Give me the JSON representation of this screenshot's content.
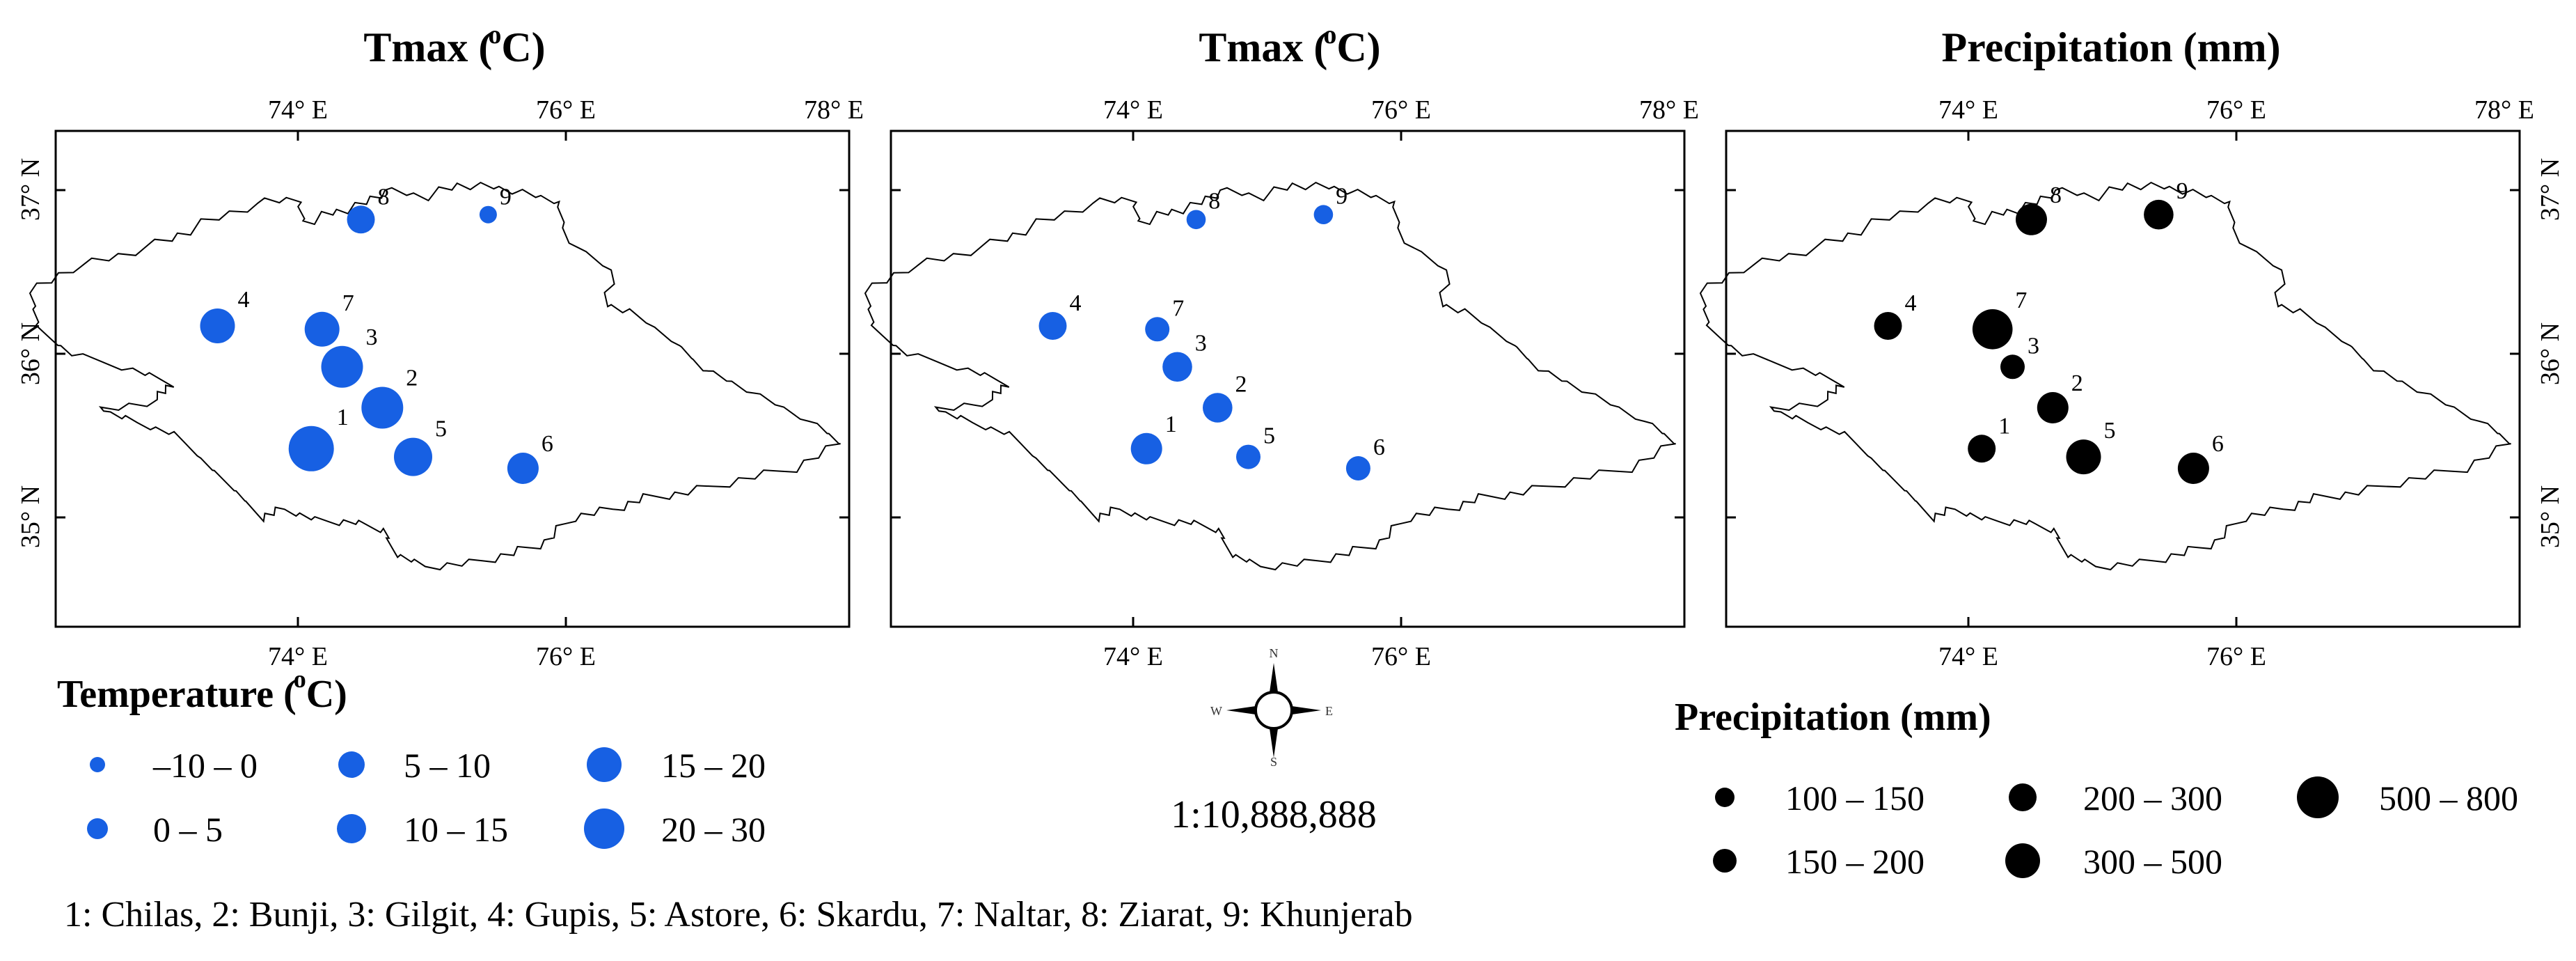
{
  "panels": [
    {
      "id": "tmax-1",
      "title_main": "Tmax (",
      "title_sup": "o",
      "title_end": "C)",
      "title_sup_dx": -6,
      "fill": "#1760e3",
      "sizes": [
        13,
        12,
        12,
        10,
        11,
        9,
        10,
        8,
        5
      ]
    },
    {
      "id": "tmax-2",
      "title_main": "Tmax (",
      "title_sup": "o",
      "title_end": "C)",
      "title_sup_dx": -6,
      "fill": "#1760e3",
      "sizes": [
        9,
        8.5,
        8.5,
        8,
        7,
        7,
        7,
        5.5,
        5.5
      ]
    },
    {
      "id": "precip",
      "title_main": "Precipitation (mm)",
      "title_sup": "",
      "title_end": "",
      "title_sup_dx": 0,
      "fill": "#000000",
      "sizes": [
        8,
        9,
        7,
        8,
        10,
        9,
        11.5,
        9,
        8.5
      ]
    }
  ],
  "axes": {
    "lon_top": [
      "74° E",
      "76° E",
      "78° E"
    ],
    "lon_bottom": [
      "74° E",
      "76° E"
    ],
    "lat_right": [
      "37° N",
      "36° N",
      "35° N"
    ],
    "lat_left": [
      "37° N",
      "36° N",
      "35° N"
    ]
  },
  "stations": [
    {
      "id": "1",
      "name": "Chilas",
      "lon": 74.1,
      "lat": 35.42
    },
    {
      "id": "2",
      "name": "Bunji",
      "lon": 74.63,
      "lat": 35.67
    },
    {
      "id": "3",
      "name": "Gilgit",
      "lon": 74.33,
      "lat": 35.92
    },
    {
      "id": "4",
      "name": "Gupis",
      "lon": 73.4,
      "lat": 36.17
    },
    {
      "id": "5",
      "name": "Astore",
      "lon": 74.86,
      "lat": 35.37
    },
    {
      "id": "6",
      "name": "Skardu",
      "lon": 75.68,
      "lat": 35.3
    },
    {
      "id": "7",
      "name": "Naltar",
      "lon": 74.18,
      "lat": 36.15
    },
    {
      "id": "8",
      "name": "Ziarat",
      "lon": 74.47,
      "lat": 36.82
    },
    {
      "id": "9",
      "name": "Khunjerab",
      "lon": 75.42,
      "lat": 36.85
    }
  ],
  "temp_legend": {
    "title_main": "Temperature (",
    "title_sup": "o",
    "title_end": "C)",
    "items": [
      "–10 – 0",
      "0 – 5",
      "5 – 10",
      "10 – 15",
      "15 – 20",
      "20 – 30"
    ],
    "color": "#1760e3"
  },
  "precip_legend": {
    "title": "Precipitation (mm)",
    "items": [
      "100 – 150",
      "150 – 200",
      "200 – 300",
      "300 – 500",
      "500 – 800"
    ],
    "color": "#000000"
  },
  "north_arrow": {
    "n": "N",
    "s": "S",
    "e": "E",
    "w": "W"
  },
  "scale": "1:10,888,888",
  "stations_caption": "1: Chilas, 2: Bunji, 3: Gilgit, 4: Gupis, 5: Astore, 6: Skardu, 7: Naltar, 8: Ziarat, 9: Khunjerab"
}
